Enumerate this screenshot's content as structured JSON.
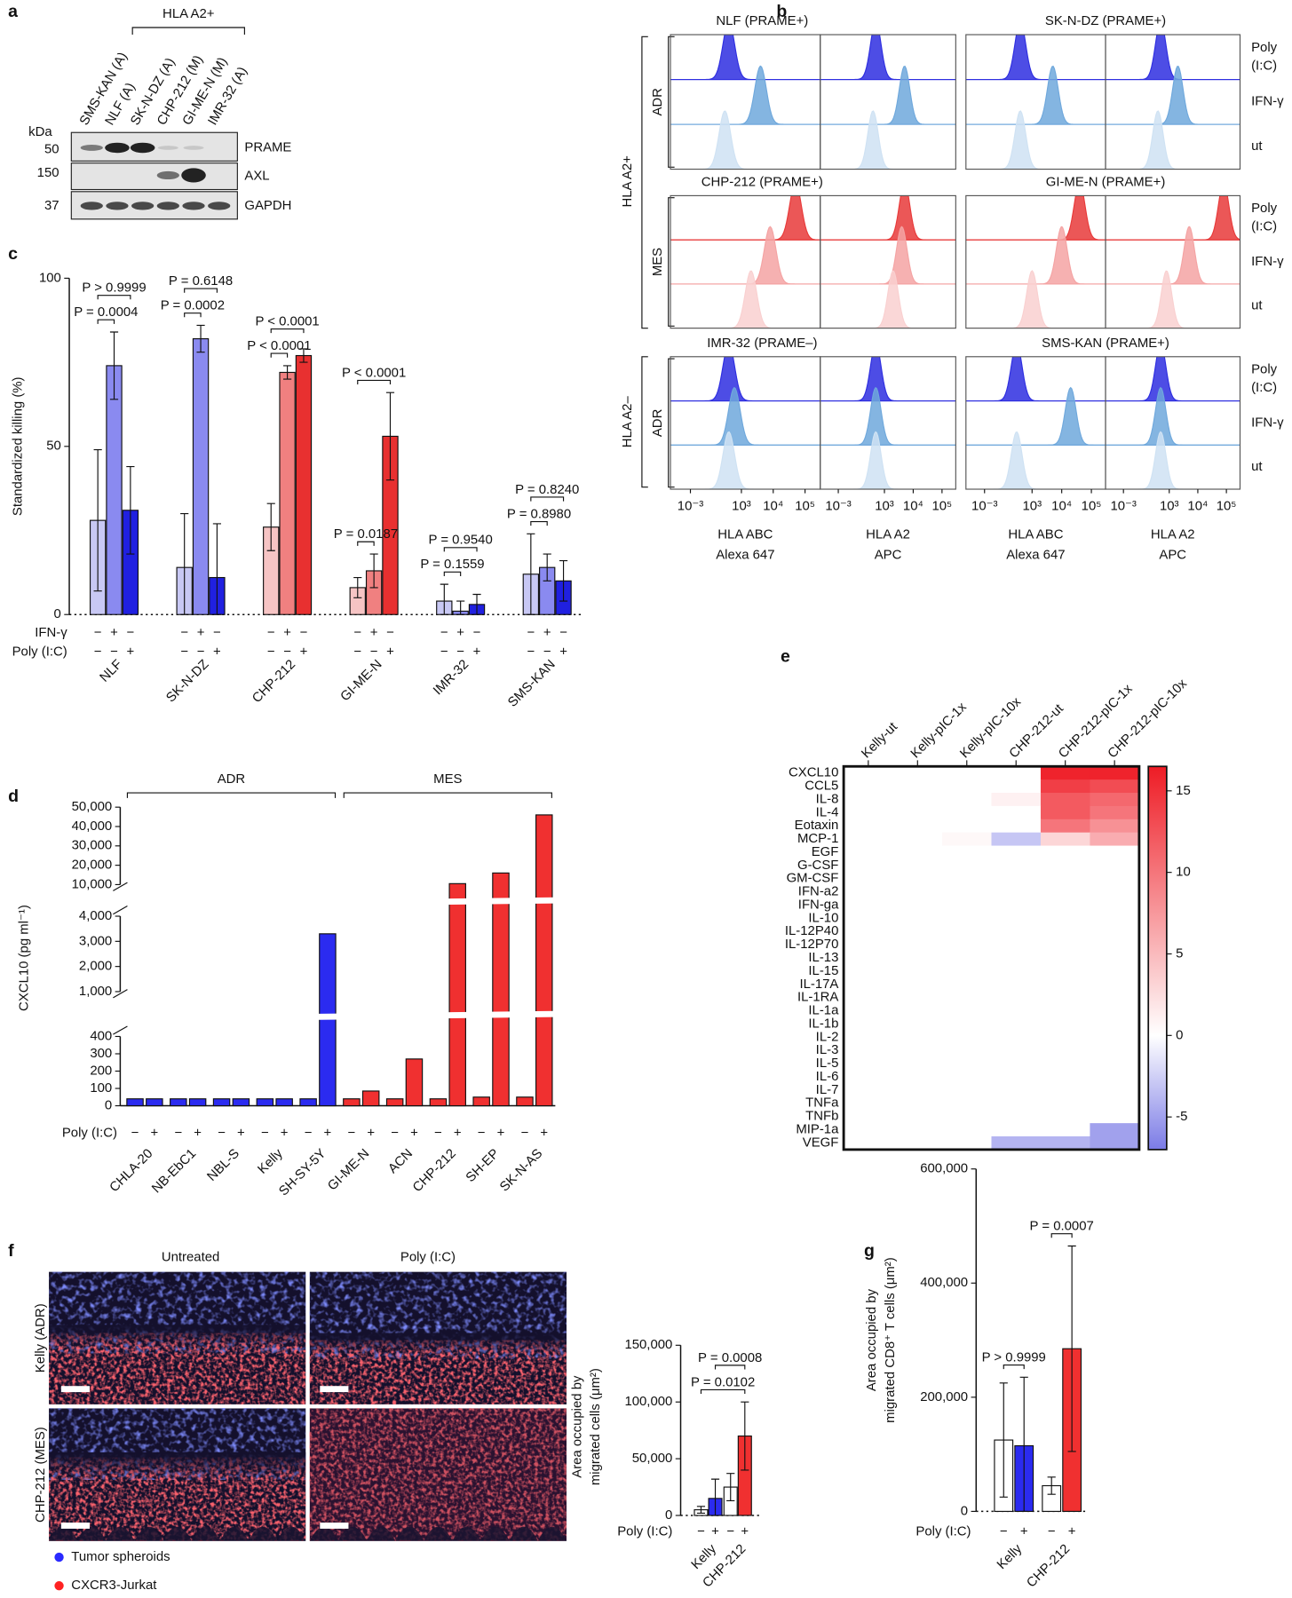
{
  "panel_a": {
    "label": "a",
    "group_label": "HLA A2+",
    "lanes": [
      "SMS-KAN (A)",
      "NLF (A)",
      "SK-N-DZ (A)",
      "CHP-212 (M)",
      "GI-ME-N (M)",
      "IMR-32 (A)"
    ],
    "marker_unit": "kDa",
    "markers": [
      "50",
      "150",
      "37"
    ],
    "bands": [
      "PRAME",
      "AXL",
      "GAPDH"
    ]
  },
  "panel_b": {
    "label": "b",
    "group_labels": [
      "HLA A2+",
      "HLA A2–"
    ],
    "lanes": [
      [
        "Poly",
        "(I:C)"
      ],
      [
        "IFN-γ"
      ],
      [
        "ut"
      ]
    ],
    "xscale": "biexponential",
    "xlim": [
      -100,
      300000
    ],
    "xticks": [
      {
        "value": 0.001,
        "label": "10⁻³"
      },
      {
        "value": 1000,
        "label": "10³"
      },
      {
        "value": 10000,
        "label": "10⁴"
      },
      {
        "value": 100000,
        "label": "10⁵"
      }
    ],
    "xlabels": [
      [
        "HLA ABC",
        "Alexa 647"
      ],
      [
        "HLA A2",
        "APC"
      ],
      [
        "HLA ABC",
        "Alexa 647"
      ],
      [
        "HLA A2",
        "APC"
      ]
    ],
    "rows": [
      {
        "name": "ADR",
        "titles": [
          "NLF (PRAME+)",
          "SK-N-DZ (PRAME+)"
        ],
        "colors": [
          "#2e2ee0",
          "#6fa8dc",
          "#cfe2f3"
        ],
        "peaks": [
          [
            400,
            4000,
            300
          ],
          [
            500,
            5000,
            400
          ],
          [
            400,
            5000,
            400
          ],
          [
            500,
            2000,
            400
          ]
        ]
      },
      {
        "name": "MES",
        "titles": [
          "CHP-212 (PRAME+)",
          "GI-ME-N (PRAME+)"
        ],
        "colors": [
          "#e83a3a",
          "#f4a3a3",
          "#f9d0d0"
        ],
        "peaks": [
          [
            50000,
            8000,
            2000
          ],
          [
            5000,
            4000,
            2000
          ],
          [
            40000,
            10000,
            1000
          ],
          [
            80000,
            5000,
            800
          ]
        ]
      },
      {
        "name": "ADR",
        "titles": [
          "IMR-32 (PRAME–)",
          "SMS-KAN (PRAME+)"
        ],
        "colors": [
          "#2e2ee0",
          "#6fa8dc",
          "#cfe2f3"
        ],
        "peaks": [
          [
            400,
            600,
            400
          ],
          [
            500,
            500,
            500
          ],
          [
            300,
            20000,
            300
          ],
          [
            500,
            500,
            500
          ]
        ]
      }
    ]
  },
  "panel_f_images": {
    "label": "f",
    "columns": [
      "Untreated",
      "Poly (I:C)"
    ],
    "rows": [
      "Kelly (ADR)",
      "CHP-212 (MES)"
    ],
    "legend": [
      {
        "name": "Tumor spheroids",
        "color": "#2a2aff"
      },
      {
        "name": "CXCR3-Jurkat",
        "color": "#ff2222"
      }
    ]
  },
  "chart_data": [
    {
      "type": "bar",
      "label": "c",
      "ylabel": "Standardized killing (%)",
      "ylim": [
        0,
        100
      ],
      "yticks": [
        0,
        50,
        100
      ],
      "categories": [
        "NLF",
        "SK-N-DZ",
        "CHP-212",
        "GI-ME-N",
        "IMR-32",
        "SMS-KAN"
      ],
      "series": [
        {
          "values": [
            28,
            14,
            26,
            8,
            4,
            12
          ],
          "errors": [
            21,
            16,
            7,
            3,
            5,
            12
          ],
          "colors": [
            "#c8c8f4",
            "#c8c8f4",
            "#f6c4c4",
            "#f6c4c4",
            "#c8c8f4",
            "#c8c8f4"
          ]
        },
        {
          "values": [
            74,
            82,
            72,
            13,
            1,
            14
          ],
          "errors": [
            10,
            4,
            2,
            5,
            3,
            4
          ],
          "colors": [
            "#8a8af0",
            "#8a8af0",
            "#f08080",
            "#f08080",
            "#8a8af0",
            "#8a8af0"
          ]
        },
        {
          "values": [
            31,
            11,
            77,
            53,
            3,
            10
          ],
          "errors": [
            13,
            16,
            2,
            13,
            3,
            6
          ],
          "colors": [
            "#2020e0",
            "#2020e0",
            "#e83030",
            "#e83030",
            "#2020e0",
            "#2020e0"
          ]
        }
      ],
      "treatments": [
        {
          "label": "IFN-γ",
          "signs": [
            "−",
            "+",
            "−"
          ]
        },
        {
          "label": "Poly (I:C)",
          "signs": [
            "−",
            "−",
            "+"
          ]
        }
      ],
      "annotations": [
        {
          "text": "P = 0.0004",
          "between": [
            [
              0,
              0
            ],
            [
              0,
              1
            ]
          ]
        },
        {
          "text": "P > 0.9999",
          "between": [
            [
              0,
              0
            ],
            [
              0,
              2
            ]
          ]
        },
        {
          "text": "P = 0.0002",
          "between": [
            [
              1,
              0
            ],
            [
              1,
              1
            ]
          ]
        },
        {
          "text": "P = 0.6148",
          "between": [
            [
              1,
              0
            ],
            [
              1,
              2
            ]
          ]
        },
        {
          "text": "P < 0.0001",
          "between": [
            [
              2,
              0
            ],
            [
              2,
              1
            ]
          ]
        },
        {
          "text": "P < 0.0001",
          "between": [
            [
              2,
              0
            ],
            [
              2,
              2
            ]
          ]
        },
        {
          "text": "P = 0.0187",
          "between": [
            [
              3,
              0
            ],
            [
              3,
              1
            ]
          ]
        },
        {
          "text": "P < 0.0001",
          "between": [
            [
              3,
              0
            ],
            [
              3,
              2
            ]
          ]
        },
        {
          "text": "P = 0.1559",
          "between": [
            [
              4,
              0
            ],
            [
              4,
              1
            ]
          ]
        },
        {
          "text": "P = 0.9540",
          "between": [
            [
              4,
              0
            ],
            [
              4,
              2
            ]
          ]
        },
        {
          "text": "P = 0.8980",
          "between": [
            [
              5,
              0
            ],
            [
              5,
              1
            ]
          ]
        },
        {
          "text": "P = 0.8240",
          "between": [
            [
              5,
              0
            ],
            [
              5,
              2
            ]
          ]
        }
      ]
    },
    {
      "type": "bar",
      "label": "d",
      "ylabel": "CXCL10 (pg ml⁻¹)",
      "ylim": [
        0,
        50000
      ],
      "y_breaks": [
        [
          400,
          1000
        ],
        [
          4000,
          10000
        ]
      ],
      "yticks": [
        0,
        100,
        200,
        300,
        400,
        {
          "value": 1000,
          "label": "1,000"
        },
        {
          "value": 2000,
          "label": "2,000"
        },
        {
          "value": 3000,
          "label": "3,000"
        },
        {
          "value": 4000,
          "label": "4,000"
        },
        {
          "value": 10000,
          "label": "10,000"
        },
        {
          "value": 20000,
          "label": "20,000"
        },
        {
          "value": 30000,
          "label": "30,000"
        },
        {
          "value": 40000,
          "label": "40,000"
        },
        {
          "value": 50000,
          "label": "50,000"
        }
      ],
      "categories": [
        "CHLA-20",
        "NB-EbC1",
        "NBL-S",
        "Kelly",
        "SH-SY-5Y",
        "GI-ME-N",
        "ACN",
        "CHP-212",
        "SH-EP",
        "SK-N-AS"
      ],
      "series": [
        {
          "values": [
            40,
            40,
            40,
            40,
            40,
            40,
            40,
            40,
            50,
            50
          ],
          "colors": [
            "#2b2bf0",
            "#2b2bf0",
            "#2b2bf0",
            "#2b2bf0",
            "#2b2bf0",
            "#f03030",
            "#f03030",
            "#f03030",
            "#f03030",
            "#f03030"
          ]
        },
        {
          "values": [
            40,
            40,
            40,
            40,
            3300,
            85,
            270,
            10500,
            16000,
            46000
          ],
          "colors": [
            "#2b2bf0",
            "#2b2bf0",
            "#2b2bf0",
            "#2b2bf0",
            "#2b2bf0",
            "#f03030",
            "#f03030",
            "#f03030",
            "#f03030",
            "#f03030"
          ]
        }
      ],
      "groups": [
        {
          "label": "ADR",
          "from": 0,
          "to": 4
        },
        {
          "label": "MES",
          "from": 5,
          "to": 9
        }
      ],
      "treatments": [
        {
          "label": "Poly (I:C)",
          "signs": [
            "−",
            "+"
          ]
        }
      ]
    },
    {
      "type": "heatmap",
      "label": "e",
      "columns": [
        "Kelly-ut",
        "Kelly-pIC-1x",
        "Kelly-pIC-10x",
        "CHP-212-ut",
        "CHP-212-pIC-1x",
        "CHP-212-pIC-10x"
      ],
      "rows": [
        "CXCL10",
        "CCL5",
        "IL-8",
        "IL-4",
        "Eotaxin",
        "MCP-1",
        "EGF",
        "G-CSF",
        "GM-CSF",
        "IFN-a2",
        "IFN-ga",
        "IL-10",
        "IL-12P40",
        "IL-12P70",
        "IL-13",
        "IL-15",
        "IL-17A",
        "IL-1RA",
        "IL-1a",
        "IL-1b",
        "IL-2",
        "IL-3",
        "IL-5",
        "IL-6",
        "IL-7",
        "TNFa",
        "TNFb",
        "MIP-1a",
        "VEGF"
      ],
      "values": [
        [
          0,
          0,
          0,
          0,
          16,
          16
        ],
        [
          0,
          0,
          0,
          0,
          14,
          13
        ],
        [
          0,
          0,
          0,
          1,
          12,
          11
        ],
        [
          0,
          0,
          0,
          0,
          12,
          10
        ],
        [
          0,
          0,
          0,
          0,
          10,
          8
        ],
        [
          0,
          0,
          0.5,
          -3,
          3,
          6
        ],
        [
          0,
          0,
          0,
          0,
          0,
          0
        ],
        [
          0,
          0,
          0,
          0,
          0,
          0
        ],
        [
          0,
          0,
          0,
          0,
          0,
          0
        ],
        [
          0,
          0,
          0,
          0,
          0,
          0
        ],
        [
          0,
          0,
          0,
          0,
          0,
          0
        ],
        [
          0,
          0,
          0,
          0,
          0,
          0
        ],
        [
          0,
          0,
          0,
          0,
          0,
          0
        ],
        [
          0,
          0,
          0,
          0,
          0,
          0
        ],
        [
          0,
          0,
          0,
          0,
          0,
          0
        ],
        [
          0,
          0,
          0,
          0,
          0,
          0
        ],
        [
          0,
          0,
          0,
          0,
          0,
          0
        ],
        [
          0,
          0,
          0,
          0,
          0,
          0
        ],
        [
          0,
          0,
          0,
          0,
          0,
          0
        ],
        [
          0,
          0,
          0,
          0,
          0,
          0
        ],
        [
          0,
          0,
          0,
          0,
          0,
          0
        ],
        [
          0,
          0,
          0,
          0,
          0,
          0
        ],
        [
          0,
          0,
          0,
          0,
          0,
          0
        ],
        [
          0,
          0,
          0,
          0,
          0,
          0
        ],
        [
          0,
          0,
          0,
          0,
          0,
          0
        ],
        [
          0,
          0,
          0,
          0,
          0,
          0
        ],
        [
          0,
          0,
          0,
          0,
          0,
          0
        ],
        [
          0,
          0,
          0,
          0,
          0,
          -5
        ],
        [
          0,
          0,
          0,
          -4,
          -4,
          -5
        ]
      ],
      "zlim": [
        -7,
        16.5
      ],
      "zticks": [
        -5,
        0,
        5,
        10,
        15
      ],
      "low_color": "#7b7be6",
      "mid_color": "#ffffff",
      "high_color": "#ee1c25"
    },
    {
      "type": "bar",
      "ylabel": [
        "Area occupied by",
        "migrated cells (μm²)"
      ],
      "ylim": [
        0,
        150000
      ],
      "yticks": [
        0,
        {
          "value": 50000,
          "label": "50,000"
        },
        {
          "value": 100000,
          "label": "100,000"
        },
        {
          "value": 150000,
          "label": "150,000"
        }
      ],
      "categories": [
        "Kelly",
        "CHP-212"
      ],
      "series": [
        {
          "values": [
            5000,
            25000
          ],
          "errors": [
            3000,
            12000
          ],
          "colors": [
            "#ffffff",
            "#ffffff"
          ]
        },
        {
          "values": [
            15000,
            70000
          ],
          "errors": [
            17000,
            30000
          ],
          "colors": [
            "#2b2bf0",
            "#f03030"
          ]
        }
      ],
      "treatments": [
        {
          "label": "Poly (I:C)",
          "signs": [
            "−",
            "+"
          ]
        }
      ],
      "annotations": [
        {
          "text": "P = 0.0102",
          "between": [
            [
              0,
              0
            ],
            [
              1,
              1
            ]
          ]
        },
        {
          "text": "P = 0.0008",
          "between": [
            [
              0,
              1
            ],
            [
              1,
              1
            ]
          ]
        }
      ]
    },
    {
      "type": "bar",
      "label": "g",
      "ylabel": [
        "Area occupied by",
        "migrated CD8⁺ T cells (μm²)"
      ],
      "ylim": [
        0,
        600000
      ],
      "yticks": [
        0,
        {
          "value": 200000,
          "label": "200,000"
        },
        {
          "value": 400000,
          "label": "400,000"
        },
        {
          "value": 600000,
          "label": "600,000"
        }
      ],
      "categories": [
        "Kelly",
        "CHP-212"
      ],
      "series": [
        {
          "values": [
            125000,
            45000
          ],
          "errors": [
            100000,
            15000
          ],
          "colors": [
            "#ffffff",
            "#ffffff"
          ]
        },
        {
          "values": [
            115000,
            285000
          ],
          "errors": [
            120000,
            180000
          ],
          "colors": [
            "#2b2bf0",
            "#f03030"
          ]
        }
      ],
      "treatments": [
        {
          "label": "Poly (I:C)",
          "signs": [
            "−",
            "+"
          ]
        }
      ],
      "annotations": [
        {
          "text": "P > 0.9999",
          "between": [
            [
              0,
              0
            ],
            [
              0,
              1
            ]
          ]
        },
        {
          "text": "P = 0.0007",
          "between": [
            [
              1,
              0
            ],
            [
              1,
              1
            ]
          ]
        }
      ]
    }
  ]
}
